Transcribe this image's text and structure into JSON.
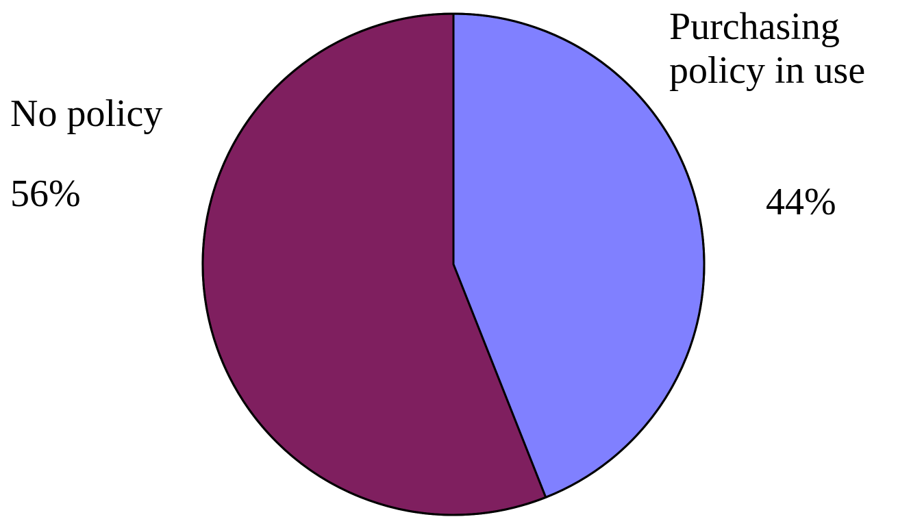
{
  "chart_data": {
    "type": "pie",
    "title": "",
    "slices": [
      {
        "label_lines": [
          "Purchasing",
          "policy in use"
        ],
        "value": 44,
        "value_label": "44%",
        "color": "#8080ff"
      },
      {
        "label_lines": [
          "No policy"
        ],
        "value": 56,
        "value_label": "56%",
        "color": "#7f1f5f"
      }
    ],
    "start_angle": "12 o'clock",
    "direction": "clockwise",
    "legend": "none",
    "outline_color": "#000000"
  }
}
